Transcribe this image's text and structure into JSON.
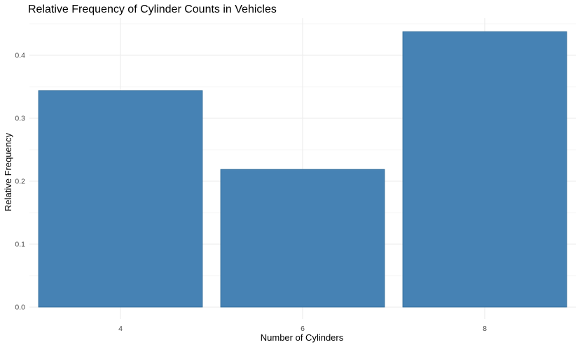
{
  "chart_data": {
    "type": "bar",
    "title": "Relative Frequency of Cylinder Counts in Vehicles",
    "xlabel": "Number of Cylinders",
    "ylabel": "Relative Frequency",
    "categories": [
      "4",
      "6",
      "8"
    ],
    "values": [
      0.34375,
      0.21875,
      0.4375
    ],
    "ylim": [
      0,
      0.4375
    ],
    "yticks": [
      "0.0",
      "0.1",
      "0.2",
      "0.3",
      "0.4"
    ],
    "grid": true,
    "legend": "none",
    "colors": {
      "bar_fill": "#4682b4",
      "bar_outline": "#2f6a96",
      "grid": "#ebebeb",
      "tick_text": "#4d4d4d"
    }
  }
}
